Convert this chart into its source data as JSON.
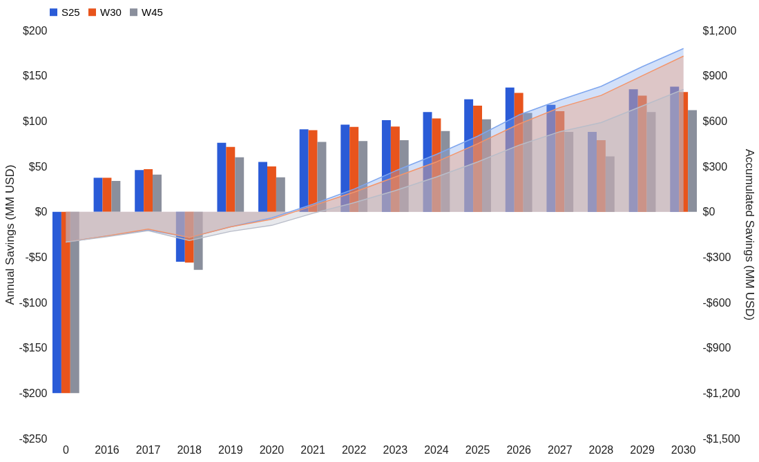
{
  "chart_data": {
    "type": "bar",
    "ylabel": "Annual Savings (MM USD)",
    "y2label": "Accumulated Savings (MM USD)",
    "categories": [
      "0",
      "2016",
      "2017",
      "2018",
      "2019",
      "2020",
      "2021",
      "2022",
      "2023",
      "2024",
      "2025",
      "2026",
      "2027",
      "2028",
      "2029",
      "2030"
    ],
    "series": [
      {
        "name": "S25",
        "color": "#2a5bd7",
        "values": [
          -200,
          37.5,
          46,
          -55,
          76,
          55,
          91,
          96,
          101,
          110,
          124,
          137,
          118,
          88,
          135,
          138
        ]
      },
      {
        "name": "W30",
        "color": "#e8541c",
        "values": [
          -200,
          37.5,
          47,
          -56,
          71.5,
          50,
          90,
          93.5,
          94,
          103,
          117,
          131,
          111,
          79,
          128,
          132
        ]
      },
      {
        "name": "W45",
        "color": "#8a8f9c",
        "values": [
          -200,
          34,
          41,
          -64,
          60,
          38,
          77,
          78,
          79,
          89,
          102,
          109,
          88,
          61,
          110,
          112
        ]
      },
      {
        "type": "area",
        "axis": "y2",
        "color": "#7fa6ee",
        "values": [
          -200,
          -160,
          -120,
          -170,
          -100,
          -40,
          50,
          150,
          270,
          380,
          500,
          640,
          740,
          830,
          960,
          1080
        ]
      },
      {
        "type": "area",
        "axis": "y2",
        "color": "#f4956a",
        "values": [
          -200,
          -160,
          -115,
          -170,
          -100,
          -50,
          40,
          130,
          230,
          330,
          450,
          580,
          690,
          770,
          900,
          1030
        ]
      },
      {
        "type": "area",
        "axis": "y2",
        "color": "#b9bdc9",
        "values": [
          -200,
          -165,
          -125,
          -190,
          -130,
          -90,
          -10,
          60,
          140,
          230,
          330,
          440,
          530,
          590,
          700,
          810
        ]
      }
    ],
    "ylim": [
      -250,
      200
    ],
    "yticks": [
      {
        "value": -250,
        "label": "-$250"
      },
      {
        "value": -200,
        "label": "-$200"
      },
      {
        "value": -150,
        "label": "-$150"
      },
      {
        "value": -100,
        "label": "-$100"
      },
      {
        "value": -50,
        "label": "-$50"
      },
      {
        "value": 0,
        "label": "$0"
      },
      {
        "value": 50,
        "label": "$50"
      },
      {
        "value": 100,
        "label": "$100"
      },
      {
        "value": 150,
        "label": "$150"
      },
      {
        "value": 200,
        "label": "$200"
      }
    ],
    "y2lim": [
      -1500,
      1200
    ],
    "y2ticks": [
      {
        "value": -1500,
        "label": "-$1,500"
      },
      {
        "value": -1200,
        "label": "-$1,200"
      },
      {
        "value": -900,
        "label": "-$900"
      },
      {
        "value": -600,
        "label": "-$600"
      },
      {
        "value": -300,
        "label": "-$300"
      },
      {
        "value": 0,
        "label": "$0"
      },
      {
        "value": 300,
        "label": "$300"
      },
      {
        "value": 600,
        "label": "$600"
      },
      {
        "value": 900,
        "label": "$900"
      },
      {
        "value": 1200,
        "label": "$1,200"
      }
    ],
    "legend": "top",
    "grid": false
  }
}
